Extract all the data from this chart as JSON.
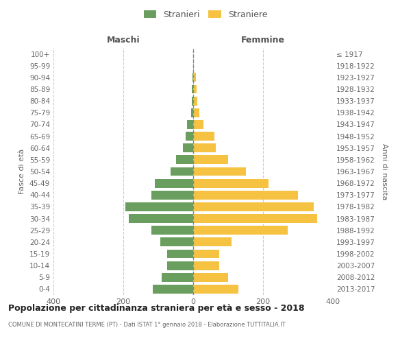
{
  "age_groups": [
    "100+",
    "95-99",
    "90-94",
    "85-89",
    "80-84",
    "75-79",
    "70-74",
    "65-69",
    "60-64",
    "55-59",
    "50-54",
    "45-49",
    "40-44",
    "35-39",
    "30-34",
    "25-29",
    "20-24",
    "15-19",
    "10-14",
    "5-9",
    "0-4"
  ],
  "birth_years": [
    "≤ 1917",
    "1918-1922",
    "1923-1927",
    "1928-1932",
    "1933-1937",
    "1938-1942",
    "1943-1947",
    "1948-1952",
    "1953-1957",
    "1958-1962",
    "1963-1967",
    "1968-1972",
    "1973-1977",
    "1978-1982",
    "1983-1987",
    "1988-1992",
    "1993-1997",
    "1998-2002",
    "2003-2007",
    "2008-2012",
    "2013-2017"
  ],
  "maschi": [
    0,
    0,
    2,
    3,
    4,
    6,
    18,
    22,
    30,
    50,
    65,
    110,
    120,
    195,
    185,
    120,
    95,
    75,
    75,
    90,
    115
  ],
  "femmine": [
    0,
    2,
    8,
    10,
    12,
    18,
    30,
    60,
    65,
    100,
    150,
    215,
    300,
    345,
    355,
    270,
    110,
    75,
    75,
    100,
    130
  ],
  "male_color": "#6a9e5e",
  "female_color": "#f5c242",
  "title": "Popolazione per cittadinanza straniera per età e sesso - 2018",
  "subtitle": "COMUNE DI MONTECATINI TERME (PT) - Dati ISTAT 1° gennaio 2018 - Elaborazione TUTTITALIA.IT",
  "xlabel_left": "Maschi",
  "xlabel_right": "Femmine",
  "ylabel_left": "Fasce di età",
  "ylabel_right": "Anni di nascita",
  "legend_male": "Stranieri",
  "legend_female": "Straniere",
  "xlim": 400,
  "background_color": "#ffffff",
  "grid_color": "#cccccc",
  "bar_height": 0.75
}
